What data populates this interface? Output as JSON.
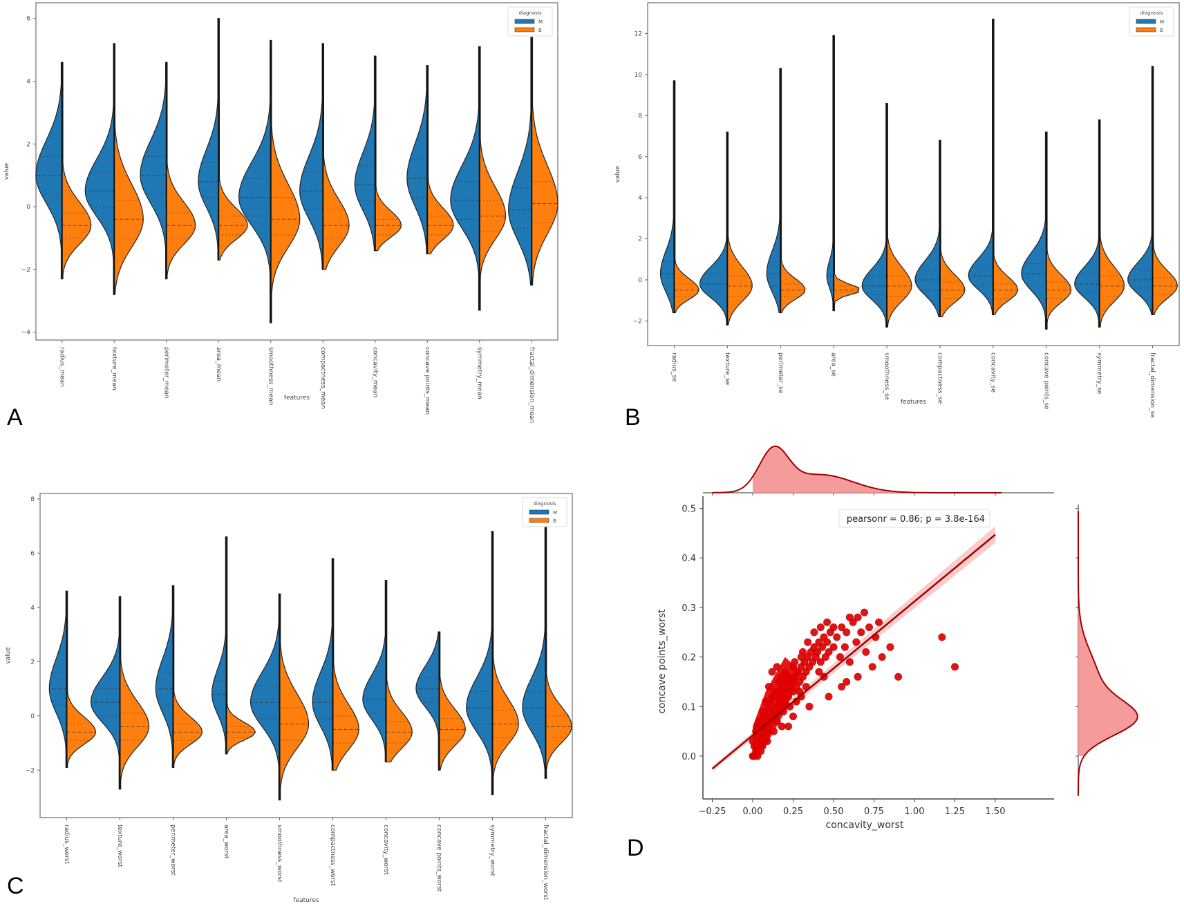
{
  "figure": {
    "panel_labels": [
      "A",
      "B",
      "C",
      "D"
    ]
  },
  "chart_data": [
    {
      "panel": "A",
      "type": "violin",
      "title": "",
      "xlabel": "features",
      "ylabel": "value",
      "ylim": [
        -4.25,
        6.5
      ],
      "yticks": [
        -4,
        -2,
        0,
        2,
        4,
        6
      ],
      "legend": {
        "title": "diagnosis",
        "placement": "top-right",
        "entries": [
          {
            "label": "M",
            "color": "#1f77b4"
          },
          {
            "label": "B",
            "color": "#ff7f0e"
          }
        ]
      },
      "categories": [
        "radius_mean",
        "texture_mean",
        "perimeter_mean",
        "area_mean",
        "smoothness_mean",
        "compactness_mean",
        "concavity_mean",
        "concave points_mean",
        "symmetry_mean",
        "fractal_dimension_mean"
      ],
      "series": [
        {
          "name": "M",
          "color": "#1f77b4",
          "median": [
            1.0,
            0.5,
            1.0,
            0.8,
            0.3,
            0.5,
            0.7,
            0.9,
            0.2,
            -0.1
          ],
          "q1": [
            0.4,
            0.0,
            0.4,
            0.3,
            -0.3,
            -0.1,
            0.2,
            0.3,
            -0.4,
            -0.7
          ],
          "q3": [
            1.6,
            1.1,
            1.6,
            1.4,
            0.9,
            1.1,
            1.3,
            1.5,
            0.8,
            0.6
          ],
          "min": [
            -2.3,
            -2.8,
            -2.3,
            -1.7,
            -3.7,
            -2.0,
            -1.4,
            -1.5,
            -3.3,
            -2.5
          ],
          "max": [
            4.6,
            5.2,
            4.6,
            6.0,
            5.3,
            5.2,
            4.8,
            4.5,
            5.1,
            5.4
          ],
          "peak": [
            0.9,
            1.0,
            0.9,
            0.7,
            1.1,
            0.8,
            0.7,
            0.7,
            1.0,
            0.8
          ]
        },
        {
          "name": "B",
          "color": "#ff7f0e",
          "median": [
            -0.6,
            -0.4,
            -0.6,
            -0.6,
            -0.4,
            -0.6,
            -0.6,
            -0.6,
            -0.3,
            0.1
          ],
          "q1": [
            -1.0,
            -1.0,
            -1.0,
            -0.9,
            -0.9,
            -1.0,
            -0.9,
            -0.9,
            -0.8,
            -0.5
          ],
          "q3": [
            -0.2,
            0.2,
            -0.2,
            -0.3,
            0.3,
            -0.1,
            -0.4,
            -0.3,
            0.2,
            0.8
          ],
          "min": [
            -2.3,
            -2.8,
            -2.3,
            -1.7,
            -3.7,
            -2.0,
            -1.4,
            -1.5,
            -3.3,
            -2.5
          ],
          "max": [
            4.6,
            5.2,
            4.6,
            6.0,
            5.3,
            5.2,
            4.8,
            4.5,
            5.1,
            5.4
          ],
          "peak": [
            1.0,
            1.0,
            1.0,
            1.0,
            1.0,
            0.9,
            0.9,
            0.9,
            0.9,
            0.9
          ]
        }
      ]
    },
    {
      "panel": "B",
      "type": "violin",
      "title": "",
      "xlabel": "features",
      "ylabel": "value",
      "ylim": [
        -3.2,
        13.5
      ],
      "yticks": [
        -2,
        0,
        2,
        4,
        6,
        8,
        10,
        12
      ],
      "legend": {
        "title": "diagnosis",
        "placement": "top-right",
        "entries": [
          {
            "label": "M",
            "color": "#1f77b4"
          },
          {
            "label": "B",
            "color": "#ff7f0e"
          }
        ]
      },
      "categories": [
        "radius_se",
        "texture_se",
        "perimeter_se",
        "area_se",
        "smoothness_se",
        "compactness_se",
        "concavity_se",
        "concave points_se",
        "symmetry_se",
        "fractal_dimension_se"
      ],
      "series": [
        {
          "name": "M",
          "color": "#1f77b4",
          "median": [
            0.3,
            -0.2,
            0.3,
            0.2,
            -0.3,
            0.0,
            0.2,
            0.3,
            -0.2,
            0.0
          ],
          "q1": [
            -0.3,
            -0.6,
            -0.3,
            -0.2,
            -0.7,
            -0.5,
            -0.3,
            -0.3,
            -0.6,
            -0.4
          ],
          "q3": [
            0.9,
            0.3,
            0.9,
            0.6,
            0.2,
            0.5,
            0.6,
            0.8,
            0.3,
            0.5
          ],
          "min": [
            -1.6,
            -2.2,
            -1.6,
            -1.5,
            -2.3,
            -1.8,
            -1.7,
            -2.4,
            -2.3,
            -1.7
          ],
          "max": [
            9.7,
            7.2,
            10.3,
            11.9,
            8.6,
            6.8,
            12.7,
            7.2,
            7.8,
            10.4
          ],
          "peak": [
            0.5,
            1.0,
            0.5,
            0.25,
            0.9,
            0.9,
            0.9,
            0.9,
            0.9,
            0.9
          ]
        },
        {
          "name": "B",
          "color": "#ff7f0e",
          "median": [
            -0.5,
            -0.3,
            -0.5,
            -0.5,
            -0.3,
            -0.5,
            -0.5,
            -0.5,
            -0.3,
            -0.3
          ],
          "q1": [
            -0.8,
            -0.8,
            -0.8,
            -0.6,
            -0.8,
            -0.9,
            -0.9,
            -0.9,
            -0.8,
            -0.7
          ],
          "q3": [
            -0.2,
            0.2,
            -0.2,
            -0.3,
            0.2,
            -0.1,
            -0.2,
            -0.1,
            0.2,
            0.1
          ],
          "min": [
            -1.6,
            -2.2,
            -1.6,
            -1.5,
            -2.3,
            -1.8,
            -1.7,
            -2.4,
            -2.3,
            -1.7
          ],
          "max": [
            9.7,
            7.2,
            10.3,
            11.9,
            8.6,
            6.8,
            12.7,
            7.2,
            7.8,
            10.4
          ],
          "peak": [
            0.9,
            0.9,
            0.9,
            1.0,
            0.9,
            0.9,
            0.9,
            0.9,
            0.9,
            0.9
          ]
        }
      ]
    },
    {
      "panel": "C",
      "type": "violin",
      "title": "",
      "xlabel": "features",
      "ylabel": "value",
      "ylim": [
        -3.75,
        8.2
      ],
      "yticks": [
        -2,
        0,
        2,
        4,
        6,
        8
      ],
      "legend": {
        "title": "diagnosis",
        "placement": "top-right",
        "entries": [
          {
            "label": "M",
            "color": "#1f77b4"
          },
          {
            "label": "B",
            "color": "#ff7f0e"
          }
        ]
      },
      "categories": [
        "radius_worst",
        "texture_worst",
        "perimeter_worst",
        "area_worst",
        "smoothness_worst",
        "compactness_worst",
        "concavity_worst",
        "concave points_worst",
        "symmetry_worst",
        "fractal_dimension_worst"
      ],
      "series": [
        {
          "name": "M",
          "color": "#1f77b4",
          "median": [
            1.0,
            0.5,
            1.0,
            0.8,
            0.5,
            0.5,
            0.6,
            1.0,
            0.3,
            0.3
          ],
          "q1": [
            0.4,
            0.0,
            0.4,
            0.3,
            -0.1,
            -0.1,
            0.1,
            0.5,
            -0.3,
            -0.3
          ],
          "q3": [
            1.6,
            1.0,
            1.6,
            1.3,
            1.1,
            1.1,
            1.1,
            1.4,
            0.9,
            0.9
          ],
          "min": [
            -1.9,
            -2.7,
            -1.9,
            -1.4,
            -3.1,
            -2.0,
            -1.7,
            -2.0,
            -2.9,
            -2.3
          ],
          "max": [
            4.6,
            4.4,
            4.8,
            6.6,
            4.5,
            5.8,
            5.0,
            3.1,
            6.8,
            7.0
          ],
          "peak": [
            0.6,
            1.0,
            0.6,
            0.5,
            1.0,
            0.7,
            0.8,
            0.8,
            0.9,
            0.8
          ]
        },
        {
          "name": "B",
          "color": "#ff7f0e",
          "median": [
            -0.6,
            -0.4,
            -0.6,
            -0.6,
            -0.3,
            -0.5,
            -0.6,
            -0.5,
            -0.3,
            -0.4
          ],
          "q1": [
            -0.9,
            -0.9,
            -0.9,
            -0.8,
            -0.9,
            -1.0,
            -1.0,
            -0.9,
            -0.8,
            -0.8
          ],
          "q3": [
            -0.3,
            0.1,
            -0.3,
            -0.4,
            0.3,
            0.0,
            -0.2,
            -0.1,
            0.2,
            0.0
          ],
          "min": [
            -1.9,
            -2.7,
            -1.9,
            -1.4,
            -3.1,
            -2.0,
            -1.7,
            -2.0,
            -2.9,
            -2.3
          ],
          "max": [
            4.6,
            4.4,
            4.8,
            6.6,
            4.5,
            5.8,
            5.0,
            3.1,
            6.8,
            7.0
          ],
          "peak": [
            1.0,
            1.0,
            1.0,
            1.0,
            1.0,
            0.9,
            0.9,
            0.9,
            0.9,
            0.9
          ]
        }
      ]
    },
    {
      "panel": "D",
      "type": "scatter",
      "title": "",
      "xlabel": "concavity_worst",
      "ylabel": "concave points_worst",
      "xlim": [
        -0.32,
        1.56
      ],
      "ylim": [
        -0.085,
        0.51
      ],
      "xticks": [
        -0.25,
        0.0,
        0.25,
        0.5,
        0.75,
        1.0,
        1.25,
        1.5
      ],
      "xtick_labels": [
        "−0.25",
        "0.00",
        "0.25",
        "0.50",
        "0.75",
        "1.00",
        "1.25",
        "1.50"
      ],
      "yticks": [
        0.0,
        0.1,
        0.2,
        0.3,
        0.4,
        0.5
      ],
      "ytick_labels": [
        "0.0",
        "0.1",
        "0.2",
        "0.3",
        "0.4",
        "0.5"
      ],
      "annotation": "pearsonr = 0.86; p = 3.8e-164",
      "regression": {
        "slope": 0.27,
        "intercept": 0.042,
        "x_range": [
          -0.25,
          1.5
        ],
        "ci_halfwidth": 0.012
      },
      "point_color": "#e00000",
      "line_color": "#a00000",
      "marginal_color": "#f28b8b",
      "points": [
        [
          0.0,
          0.0
        ],
        [
          0.01,
          0.02
        ],
        [
          0.02,
          0.01
        ],
        [
          0.0,
          0.03
        ],
        [
          0.03,
          0.02
        ],
        [
          0.04,
          0.04
        ],
        [
          0.05,
          0.03
        ],
        [
          0.02,
          0.05
        ],
        [
          0.06,
          0.05
        ],
        [
          0.07,
          0.06
        ],
        [
          0.08,
          0.04
        ],
        [
          0.05,
          0.07
        ],
        [
          0.09,
          0.07
        ],
        [
          0.1,
          0.06
        ],
        [
          0.11,
          0.08
        ],
        [
          0.12,
          0.07
        ],
        [
          0.08,
          0.09
        ],
        [
          0.13,
          0.09
        ],
        [
          0.14,
          0.08
        ],
        [
          0.15,
          0.1
        ],
        [
          0.1,
          0.1
        ],
        [
          0.16,
          0.09
        ],
        [
          0.17,
          0.11
        ],
        [
          0.18,
          0.1
        ],
        [
          0.12,
          0.12
        ],
        [
          0.19,
          0.12
        ],
        [
          0.2,
          0.11
        ],
        [
          0.14,
          0.13
        ],
        [
          0.21,
          0.13
        ],
        [
          0.22,
          0.12
        ],
        [
          0.23,
          0.14
        ],
        [
          0.16,
          0.15
        ],
        [
          0.24,
          0.15
        ],
        [
          0.25,
          0.13
        ],
        [
          0.26,
          0.16
        ],
        [
          0.18,
          0.16
        ],
        [
          0.27,
          0.14
        ],
        [
          0.28,
          0.17
        ],
        [
          0.29,
          0.15
        ],
        [
          0.3,
          0.18
        ],
        [
          0.2,
          0.17
        ],
        [
          0.31,
          0.16
        ],
        [
          0.32,
          0.19
        ],
        [
          0.33,
          0.17
        ],
        [
          0.34,
          0.2
        ],
        [
          0.35,
          0.18
        ],
        [
          0.36,
          0.21
        ],
        [
          0.37,
          0.19
        ],
        [
          0.38,
          0.22
        ],
        [
          0.39,
          0.2
        ],
        [
          0.4,
          0.21
        ],
        [
          0.41,
          0.23
        ],
        [
          0.42,
          0.19
        ],
        [
          0.43,
          0.22
        ],
        [
          0.44,
          0.24
        ],
        [
          0.45,
          0.2
        ],
        [
          0.46,
          0.23
        ],
        [
          0.47,
          0.21
        ],
        [
          0.48,
          0.25
        ],
        [
          0.5,
          0.22
        ],
        [
          0.52,
          0.24
        ],
        [
          0.54,
          0.2
        ],
        [
          0.55,
          0.26
        ],
        [
          0.57,
          0.22
        ],
        [
          0.58,
          0.25
        ],
        [
          0.6,
          0.19
        ],
        [
          0.62,
          0.27
        ],
        [
          0.64,
          0.23
        ],
        [
          0.65,
          0.28
        ],
        [
          0.67,
          0.25
        ],
        [
          0.69,
          0.29
        ],
        [
          0.7,
          0.21
        ],
        [
          0.72,
          0.26
        ],
        [
          0.74,
          0.18
        ],
        [
          0.76,
          0.24
        ],
        [
          0.78,
          0.27
        ],
        [
          0.8,
          0.2
        ],
        [
          0.85,
          0.22
        ],
        [
          0.9,
          0.16
        ],
        [
          1.17,
          0.24
        ],
        [
          1.25,
          0.18
        ],
        [
          0.55,
          0.14
        ],
        [
          0.58,
          0.15
        ],
        [
          0.65,
          0.16
        ],
        [
          0.47,
          0.12
        ],
        [
          0.35,
          0.1
        ],
        [
          0.3,
          0.12
        ],
        [
          0.25,
          0.08
        ],
        [
          0.22,
          0.06
        ],
        [
          0.18,
          0.06
        ],
        [
          0.05,
          0.01
        ],
        [
          0.03,
          0.06
        ],
        [
          0.07,
          0.08
        ],
        [
          0.09,
          0.05
        ],
        [
          0.11,
          0.11
        ],
        [
          0.13,
          0.05
        ],
        [
          0.15,
          0.07
        ],
        [
          0.17,
          0.13
        ],
        [
          0.19,
          0.09
        ],
        [
          0.21,
          0.15
        ],
        [
          0.23,
          0.1
        ],
        [
          0.25,
          0.18
        ],
        [
          0.27,
          0.11
        ],
        [
          0.29,
          0.13
        ],
        [
          0.31,
          0.21
        ],
        [
          0.33,
          0.14
        ],
        [
          0.15,
          0.18
        ],
        [
          0.12,
          0.17
        ],
        [
          0.1,
          0.14
        ],
        [
          0.08,
          0.11
        ],
        [
          0.06,
          0.09
        ],
        [
          0.04,
          0.07
        ],
        [
          0.02,
          0.04
        ],
        [
          0.01,
          0.0
        ],
        [
          0.03,
          0.0
        ],
        [
          0.06,
          0.02
        ],
        [
          0.09,
          0.03
        ],
        [
          0.14,
          0.12
        ],
        [
          0.18,
          0.14
        ],
        [
          0.22,
          0.16
        ],
        [
          0.26,
          0.19
        ],
        [
          0.3,
          0.2
        ],
        [
          0.34,
          0.23
        ],
        [
          0.38,
          0.25
        ],
        [
          0.42,
          0.26
        ],
        [
          0.46,
          0.27
        ],
        [
          0.5,
          0.26
        ],
        [
          0.6,
          0.28
        ],
        [
          0.41,
          0.17
        ],
        [
          0.44,
          0.16
        ]
      ]
    }
  ]
}
